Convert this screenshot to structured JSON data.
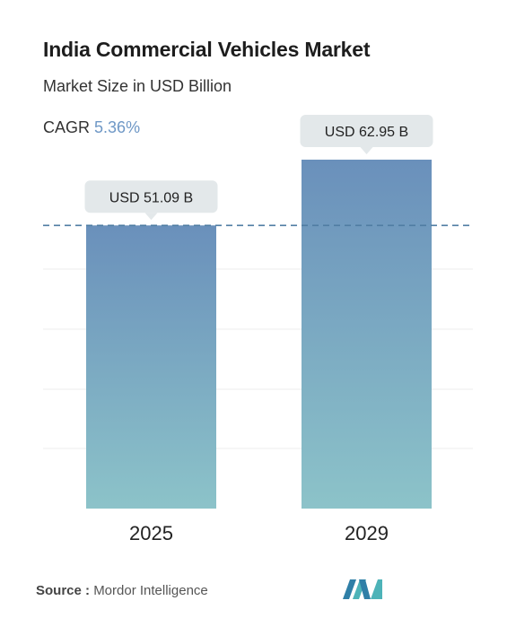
{
  "header": {
    "title": "India Commercial Vehicles Market",
    "subtitle": "Market Size in USD Billion",
    "cagr_label": "CAGR",
    "cagr_value": "5.36%"
  },
  "footer": {
    "source_label": "Source :",
    "source_name": "Mordor Intelligence"
  },
  "colors": {
    "bar_top": "#6a90bb",
    "bar_bottom": "#8cc3c9",
    "dashed_line": "#4f7da3",
    "callout_bg": "#e3e8ea",
    "cagr_accent": "#6f98c6"
  },
  "chart_data": {
    "type": "bar",
    "categories": [
      "2025",
      "2029"
    ],
    "values": [
      51.09,
      62.95
    ],
    "data_labels": [
      "USD 51.09 B",
      "USD 62.95 B"
    ],
    "reference_line": 51.09,
    "title": "India Commercial Vehicles Market",
    "ylabel": "",
    "xlabel": "",
    "ylim": [
      0,
      62.95
    ],
    "grid": true
  }
}
